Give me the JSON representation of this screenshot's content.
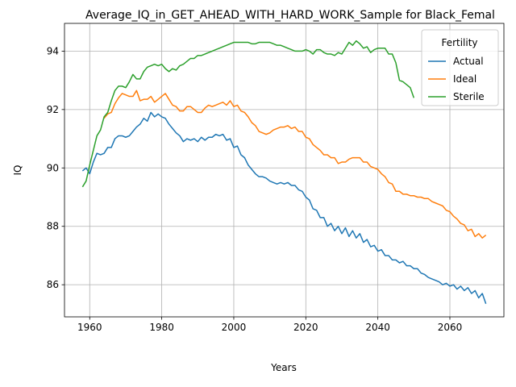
{
  "chart_data": {
    "type": "line",
    "title": "Average_IQ_in_GET_AHEAD_WITH_HARD_WORK_Sample for Black_Femal",
    "xlabel": "Years",
    "ylabel": "IQ",
    "xlim": [
      1953,
      2075
    ],
    "ylim": [
      84.9,
      94.95
    ],
    "xticks": [
      1960,
      1980,
      2000,
      2020,
      2040,
      2060
    ],
    "yticks": [
      86,
      88,
      90,
      92,
      94
    ],
    "grid": true,
    "legend": {
      "title": "Fertility",
      "position": "top-right"
    },
    "series": [
      {
        "name": "Actual",
        "color": "#1f77b4",
        "points": [
          [
            1958,
            89.9
          ],
          [
            1959,
            90.0
          ],
          [
            1960,
            89.8
          ],
          [
            1961,
            90.2
          ],
          [
            1962,
            90.5
          ],
          [
            1963,
            90.45
          ],
          [
            1964,
            90.5
          ],
          [
            1965,
            90.7
          ],
          [
            1966,
            90.7
          ],
          [
            1967,
            91.0
          ],
          [
            1968,
            91.1
          ],
          [
            1969,
            91.1
          ],
          [
            1970,
            91.05
          ],
          [
            1971,
            91.1
          ],
          [
            1972,
            91.25
          ],
          [
            1973,
            91.4
          ],
          [
            1974,
            91.5
          ],
          [
            1975,
            91.7
          ],
          [
            1976,
            91.6
          ],
          [
            1977,
            91.9
          ],
          [
            1978,
            91.75
          ],
          [
            1979,
            91.85
          ],
          [
            1980,
            91.75
          ],
          [
            1981,
            91.7
          ],
          [
            1982,
            91.5
          ],
          [
            1983,
            91.35
          ],
          [
            1984,
            91.2
          ],
          [
            1985,
            91.1
          ],
          [
            1986,
            90.9
          ],
          [
            1987,
            91.0
          ],
          [
            1988,
            90.95
          ],
          [
            1989,
            91.0
          ],
          [
            1990,
            90.9
          ],
          [
            1991,
            91.05
          ],
          [
            1992,
            90.95
          ],
          [
            1993,
            91.05
          ],
          [
            1994,
            91.05
          ],
          [
            1995,
            91.15
          ],
          [
            1996,
            91.1
          ],
          [
            1997,
            91.15
          ],
          [
            1998,
            90.95
          ],
          [
            1999,
            91.0
          ],
          [
            2000,
            90.7
          ],
          [
            2001,
            90.75
          ],
          [
            2002,
            90.45
          ],
          [
            2003,
            90.35
          ],
          [
            2004,
            90.1
          ],
          [
            2005,
            89.95
          ],
          [
            2006,
            89.8
          ],
          [
            2007,
            89.7
          ],
          [
            2008,
            89.7
          ],
          [
            2009,
            89.65
          ],
          [
            2010,
            89.55
          ],
          [
            2011,
            89.5
          ],
          [
            2012,
            89.45
          ],
          [
            2013,
            89.5
          ],
          [
            2014,
            89.45
          ],
          [
            2015,
            89.5
          ],
          [
            2016,
            89.4
          ],
          [
            2017,
            89.4
          ],
          [
            2018,
            89.25
          ],
          [
            2019,
            89.2
          ],
          [
            2020,
            89.0
          ],
          [
            2021,
            88.9
          ],
          [
            2022,
            88.6
          ],
          [
            2023,
            88.55
          ],
          [
            2024,
            88.3
          ],
          [
            2025,
            88.3
          ],
          [
            2026,
            88.0
          ],
          [
            2027,
            88.1
          ],
          [
            2028,
            87.85
          ],
          [
            2029,
            88.0
          ],
          [
            2030,
            87.75
          ],
          [
            2031,
            87.95
          ],
          [
            2032,
            87.65
          ],
          [
            2033,
            87.85
          ],
          [
            2034,
            87.6
          ],
          [
            2035,
            87.75
          ],
          [
            2036,
            87.45
          ],
          [
            2037,
            87.55
          ],
          [
            2038,
            87.3
          ],
          [
            2039,
            87.35
          ],
          [
            2040,
            87.15
          ],
          [
            2041,
            87.2
          ],
          [
            2042,
            87.0
          ],
          [
            2043,
            87.0
          ],
          [
            2044,
            86.85
          ],
          [
            2045,
            86.85
          ],
          [
            2046,
            86.75
          ],
          [
            2047,
            86.8
          ],
          [
            2048,
            86.65
          ],
          [
            2049,
            86.65
          ],
          [
            2050,
            86.55
          ],
          [
            2051,
            86.55
          ],
          [
            2052,
            86.4
          ],
          [
            2053,
            86.35
          ],
          [
            2054,
            86.25
          ],
          [
            2055,
            86.2
          ],
          [
            2056,
            86.15
          ],
          [
            2057,
            86.1
          ],
          [
            2058,
            86.0
          ],
          [
            2059,
            86.05
          ],
          [
            2060,
            85.95
          ],
          [
            2061,
            86.0
          ],
          [
            2062,
            85.85
          ],
          [
            2063,
            85.95
          ],
          [
            2064,
            85.8
          ],
          [
            2065,
            85.9
          ],
          [
            2066,
            85.7
          ],
          [
            2067,
            85.8
          ],
          [
            2068,
            85.55
          ],
          [
            2069,
            85.7
          ],
          [
            2070,
            85.35
          ]
        ]
      },
      {
        "name": "Ideal",
        "color": "#ff7f0e",
        "points": [
          [
            1964,
            91.7
          ],
          [
            1965,
            91.85
          ],
          [
            1966,
            91.9
          ],
          [
            1967,
            92.2
          ],
          [
            1968,
            92.4
          ],
          [
            1969,
            92.55
          ],
          [
            1970,
            92.5
          ],
          [
            1971,
            92.45
          ],
          [
            1972,
            92.45
          ],
          [
            1973,
            92.65
          ],
          [
            1974,
            92.3
          ],
          [
            1975,
            92.35
          ],
          [
            1976,
            92.35
          ],
          [
            1977,
            92.45
          ],
          [
            1978,
            92.25
          ],
          [
            1979,
            92.35
          ],
          [
            1980,
            92.45
          ],
          [
            1981,
            92.55
          ],
          [
            1982,
            92.35
          ],
          [
            1983,
            92.15
          ],
          [
            1984,
            92.1
          ],
          [
            1985,
            91.95
          ],
          [
            1986,
            91.95
          ],
          [
            1987,
            92.1
          ],
          [
            1988,
            92.1
          ],
          [
            1989,
            92.0
          ],
          [
            1990,
            91.9
          ],
          [
            1991,
            91.9
          ],
          [
            1992,
            92.05
          ],
          [
            1993,
            92.15
          ],
          [
            1994,
            92.1
          ],
          [
            1995,
            92.15
          ],
          [
            1996,
            92.2
          ],
          [
            1997,
            92.25
          ],
          [
            1998,
            92.15
          ],
          [
            1999,
            92.3
          ],
          [
            2000,
            92.1
          ],
          [
            2001,
            92.15
          ],
          [
            2002,
            91.95
          ],
          [
            2003,
            91.9
          ],
          [
            2004,
            91.75
          ],
          [
            2005,
            91.55
          ],
          [
            2006,
            91.45
          ],
          [
            2007,
            91.25
          ],
          [
            2008,
            91.2
          ],
          [
            2009,
            91.15
          ],
          [
            2010,
            91.2
          ],
          [
            2011,
            91.3
          ],
          [
            2012,
            91.35
          ],
          [
            2013,
            91.4
          ],
          [
            2014,
            91.4
          ],
          [
            2015,
            91.45
          ],
          [
            2016,
            91.35
          ],
          [
            2017,
            91.4
          ],
          [
            2018,
            91.25
          ],
          [
            2019,
            91.25
          ],
          [
            2020,
            91.05
          ],
          [
            2021,
            91.0
          ],
          [
            2022,
            90.8
          ],
          [
            2023,
            90.7
          ],
          [
            2024,
            90.6
          ],
          [
            2025,
            90.45
          ],
          [
            2026,
            90.45
          ],
          [
            2027,
            90.35
          ],
          [
            2028,
            90.35
          ],
          [
            2029,
            90.15
          ],
          [
            2030,
            90.2
          ],
          [
            2031,
            90.2
          ],
          [
            2032,
            90.3
          ],
          [
            2033,
            90.35
          ],
          [
            2034,
            90.35
          ],
          [
            2035,
            90.35
          ],
          [
            2036,
            90.2
          ],
          [
            2037,
            90.2
          ],
          [
            2038,
            90.05
          ],
          [
            2039,
            90.0
          ],
          [
            2040,
            89.95
          ],
          [
            2041,
            89.8
          ],
          [
            2042,
            89.7
          ],
          [
            2043,
            89.5
          ],
          [
            2044,
            89.45
          ],
          [
            2045,
            89.2
          ],
          [
            2046,
            89.2
          ],
          [
            2047,
            89.1
          ],
          [
            2048,
            89.1
          ],
          [
            2049,
            89.05
          ],
          [
            2050,
            89.05
          ],
          [
            2051,
            89.0
          ],
          [
            2052,
            89.0
          ],
          [
            2053,
            88.95
          ],
          [
            2054,
            88.95
          ],
          [
            2055,
            88.85
          ],
          [
            2056,
            88.8
          ],
          [
            2057,
            88.75
          ],
          [
            2058,
            88.7
          ],
          [
            2059,
            88.55
          ],
          [
            2060,
            88.5
          ],
          [
            2061,
            88.35
          ],
          [
            2062,
            88.25
          ],
          [
            2063,
            88.1
          ],
          [
            2064,
            88.05
          ],
          [
            2065,
            87.85
          ],
          [
            2066,
            87.9
          ],
          [
            2067,
            87.65
          ],
          [
            2068,
            87.75
          ],
          [
            2069,
            87.6
          ],
          [
            2070,
            87.7
          ]
        ]
      },
      {
        "name": "Sterile",
        "color": "#2ca02c",
        "points": [
          [
            1958,
            89.35
          ],
          [
            1959,
            89.55
          ],
          [
            1960,
            90.1
          ],
          [
            1961,
            90.6
          ],
          [
            1962,
            91.1
          ],
          [
            1963,
            91.3
          ],
          [
            1964,
            91.75
          ],
          [
            1965,
            91.9
          ],
          [
            1966,
            92.3
          ],
          [
            1967,
            92.65
          ],
          [
            1968,
            92.8
          ],
          [
            1969,
            92.8
          ],
          [
            1970,
            92.75
          ],
          [
            1971,
            92.95
          ],
          [
            1972,
            93.2
          ],
          [
            1973,
            93.05
          ],
          [
            1974,
            93.05
          ],
          [
            1975,
            93.3
          ],
          [
            1976,
            93.45
          ],
          [
            1977,
            93.5
          ],
          [
            1978,
            93.55
          ],
          [
            1979,
            93.5
          ],
          [
            1980,
            93.55
          ],
          [
            1981,
            93.4
          ],
          [
            1982,
            93.3
          ],
          [
            1983,
            93.4
          ],
          [
            1984,
            93.35
          ],
          [
            1985,
            93.5
          ],
          [
            1986,
            93.55
          ],
          [
            1987,
            93.65
          ],
          [
            1988,
            93.75
          ],
          [
            1989,
            93.75
          ],
          [
            1990,
            93.85
          ],
          [
            1991,
            93.85
          ],
          [
            1992,
            93.9
          ],
          [
            1993,
            93.95
          ],
          [
            1994,
            94.0
          ],
          [
            1995,
            94.05
          ],
          [
            1996,
            94.1
          ],
          [
            1997,
            94.15
          ],
          [
            1998,
            94.2
          ],
          [
            1999,
            94.25
          ],
          [
            2000,
            94.3
          ],
          [
            2001,
            94.3
          ],
          [
            2002,
            94.3
          ],
          [
            2003,
            94.3
          ],
          [
            2004,
            94.3
          ],
          [
            2005,
            94.25
          ],
          [
            2006,
            94.25
          ],
          [
            2007,
            94.3
          ],
          [
            2008,
            94.3
          ],
          [
            2009,
            94.3
          ],
          [
            2010,
            94.3
          ],
          [
            2011,
            94.25
          ],
          [
            2012,
            94.2
          ],
          [
            2013,
            94.2
          ],
          [
            2014,
            94.15
          ],
          [
            2015,
            94.1
          ],
          [
            2016,
            94.05
          ],
          [
            2017,
            94.0
          ],
          [
            2018,
            94.0
          ],
          [
            2019,
            94.0
          ],
          [
            2020,
            94.05
          ],
          [
            2021,
            94.0
          ],
          [
            2022,
            93.9
          ],
          [
            2023,
            94.05
          ],
          [
            2024,
            94.05
          ],
          [
            2025,
            93.95
          ],
          [
            2026,
            93.9
          ],
          [
            2027,
            93.9
          ],
          [
            2028,
            93.85
          ],
          [
            2029,
            93.95
          ],
          [
            2030,
            93.9
          ],
          [
            2031,
            94.1
          ],
          [
            2032,
            94.3
          ],
          [
            2033,
            94.2
          ],
          [
            2034,
            94.35
          ],
          [
            2035,
            94.25
          ],
          [
            2036,
            94.1
          ],
          [
            2037,
            94.15
          ],
          [
            2038,
            93.95
          ],
          [
            2039,
            94.05
          ],
          [
            2040,
            94.1
          ],
          [
            2041,
            94.1
          ],
          [
            2042,
            94.1
          ],
          [
            2043,
            93.9
          ],
          [
            2044,
            93.9
          ],
          [
            2045,
            93.6
          ],
          [
            2046,
            93.0
          ],
          [
            2047,
            92.95
          ],
          [
            2048,
            92.85
          ],
          [
            2049,
            92.75
          ],
          [
            2050,
            92.4
          ]
        ]
      }
    ]
  }
}
